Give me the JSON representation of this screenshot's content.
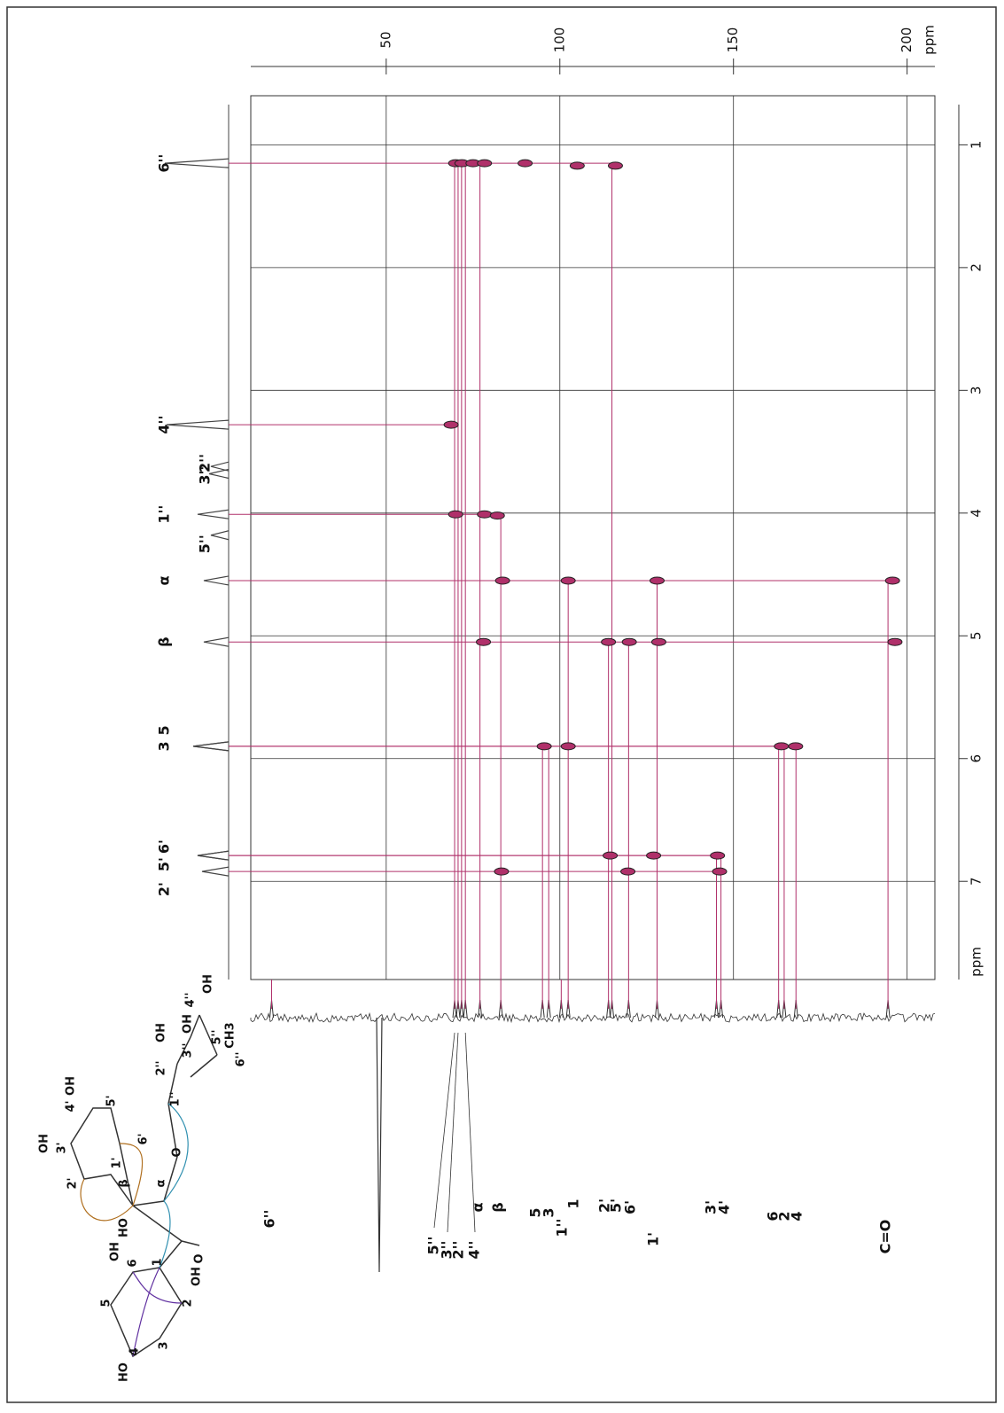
{
  "chart_data": {
    "type": "hmbc",
    "x_label": "ppm",
    "y_label": "ppm",
    "xlim": [
      11,
      208
    ],
    "xticks": [
      50,
      100,
      150,
      200
    ],
    "ylim": [
      0.6,
      7.8
    ],
    "yticks": [
      1,
      2,
      3,
      4,
      5,
      6,
      7
    ],
    "grid": true,
    "solvent_peak": 48,
    "h_signals": {
      "labels": [
        "6''",
        "4''",
        "3''",
        "2''",
        "1''",
        "5''",
        "α",
        "β",
        "3",
        "5",
        "5'",
        "6'",
        "2'"
      ],
      "values": [
        1.15,
        3.28,
        3.62,
        3.68,
        4.01,
        4.18,
        4.55,
        5.05,
        5.9,
        5.9,
        6.79,
        6.79,
        6.92
      ]
    },
    "c_signals": {
      "labels": [
        "6''",
        "5''",
        "3''",
        "2''",
        "4''",
        "α",
        "β",
        "5",
        "3",
        "1''",
        "1",
        "2'",
        "5'",
        "6'",
        "1'",
        "3'",
        "4'",
        "6",
        "2",
        "4",
        "C=O"
      ],
      "values": [
        17,
        69.7,
        70.7,
        71.7,
        72.8,
        77,
        83,
        95,
        96.8,
        100.4,
        102.4,
        114,
        115,
        119.8,
        128,
        145.1,
        146.4,
        163,
        164.6,
        168,
        194.5
      ]
    },
    "peaks": {
      "color": "#b0306a",
      "x": [
        70,
        71.8,
        75,
        78.3,
        90,
        105,
        116,
        68.7,
        70,
        78.3,
        82,
        83.5,
        102.4,
        128,
        195.8,
        78,
        114,
        120,
        128.5,
        196.5,
        95.5,
        102.4,
        163.8,
        167.9,
        114.5,
        127,
        145.4,
        83.2,
        119.6,
        146
      ],
      "y": [
        1.15,
        1.15,
        1.15,
        1.15,
        1.15,
        1.17,
        1.17,
        3.28,
        4.01,
        4.01,
        4.02,
        4.55,
        4.55,
        4.55,
        4.55,
        5.05,
        5.05,
        5.05,
        5.05,
        5.05,
        5.9,
        5.9,
        5.9,
        5.9,
        6.79,
        6.79,
        6.79,
        6.92,
        6.92,
        6.92
      ]
    }
  },
  "structure": {
    "labels": [
      "HO",
      "4",
      "3",
      "5",
      "2",
      "OH",
      "OH",
      "6",
      "1",
      "HO",
      "O",
      "β",
      "α",
      "O",
      "2'",
      "1'",
      "3'",
      "OH",
      "6'",
      "4'",
      "OH",
      "5'",
      "1''",
      "2''",
      "OH",
      "3''",
      "OH",
      "4''",
      "OH",
      "5''",
      "CH3",
      "6''"
    ]
  }
}
